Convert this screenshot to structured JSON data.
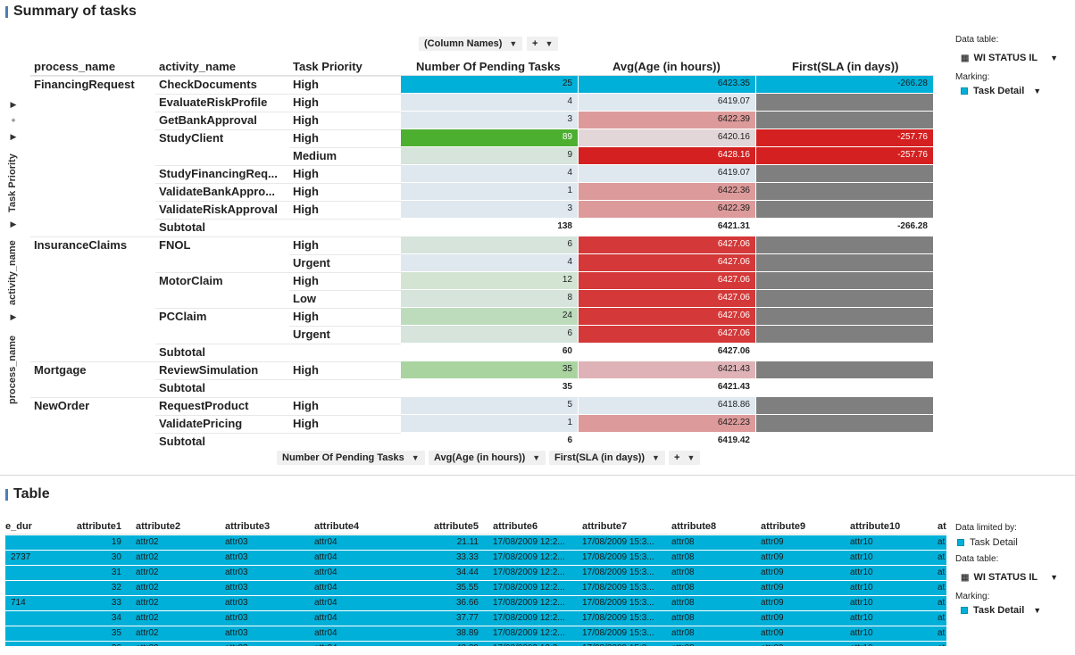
{
  "summary": {
    "title": "Summary of tasks",
    "column_names_label": "(Column Names)",
    "plus_label": "+",
    "vertical_axis": [
      "Task Priority",
      "activity_name",
      "process_name"
    ],
    "headers": [
      "process_name",
      "activity_name",
      "Task Priority",
      "Number Of Pending Tasks",
      "Avg(Age (in hours))",
      "First(SLA (in days))"
    ],
    "rows": [
      {
        "process": "FinancingRequest",
        "activity": "CheckDocuments",
        "priority": "High",
        "count": "25",
        "avg": "6423.35",
        "sla": "-266.28",
        "c1": "#00b0d8",
        "c2": "#00b0d8",
        "c3": "#00b0d8",
        "sub": false
      },
      {
        "process": "",
        "activity": "EvaluateRiskProfile",
        "priority": "High",
        "count": "4",
        "avg": "6419.07",
        "sla": "",
        "c1": "#dfe8ef",
        "c2": "#dfe8ef",
        "c3": "#7f7f7f",
        "sub": false
      },
      {
        "process": "",
        "activity": "GetBankApproval",
        "priority": "High",
        "count": "3",
        "avg": "6422.39",
        "sla": "",
        "c1": "#dfe8ef",
        "c2": "#dd9a9a",
        "c3": "#7f7f7f",
        "sub": false
      },
      {
        "process": "",
        "activity": "StudyClient",
        "priority": "High",
        "count": "89",
        "avg": "6420.16",
        "sla": "-257.76",
        "c1": "#4caf30",
        "c2": "#e2d6d8",
        "c3": "#d42020",
        "sub": false
      },
      {
        "process": "",
        "activity": "",
        "priority": "Medium",
        "count": "9",
        "avg": "6428.16",
        "sla": "-257.76",
        "c1": "#d6e4dc",
        "c2": "#d42020",
        "c3": "#d42020",
        "sub": false
      },
      {
        "process": "",
        "activity": "StudyFinancingReq...",
        "priority": "High",
        "count": "4",
        "avg": "6419.07",
        "sla": "",
        "c1": "#dfe8ef",
        "c2": "#dfe8ef",
        "c3": "#7f7f7f",
        "sub": false
      },
      {
        "process": "",
        "activity": "ValidateBankAppro...",
        "priority": "High",
        "count": "1",
        "avg": "6422.36",
        "sla": "",
        "c1": "#dfe8ef",
        "c2": "#dd9a9a",
        "c3": "#7f7f7f",
        "sub": false
      },
      {
        "process": "",
        "activity": "ValidateRiskApproval",
        "priority": "High",
        "count": "3",
        "avg": "6422.39",
        "sla": "",
        "c1": "#dfe8ef",
        "c2": "#dd9a9a",
        "c3": "#7f7f7f",
        "sub": false
      },
      {
        "process": "",
        "activity": "Subtotal",
        "priority": "",
        "count": "138",
        "avg": "6421.31",
        "sla": "-266.28",
        "c1": "#ffffff",
        "c2": "#ffffff",
        "c3": "#ffffff",
        "sub": true
      },
      {
        "process": "InsuranceClaims",
        "activity": "FNOL",
        "priority": "High",
        "count": "6",
        "avg": "6427.06",
        "sla": "",
        "c1": "#d6e4dc",
        "c2": "#d43838",
        "c3": "#7f7f7f",
        "sub": false
      },
      {
        "process": "",
        "activity": "",
        "priority": "Urgent",
        "count": "4",
        "avg": "6427.06",
        "sla": "",
        "c1": "#dfe8ef",
        "c2": "#d43838",
        "c3": "#7f7f7f",
        "sub": false
      },
      {
        "process": "",
        "activity": "MotorClaim",
        "priority": "High",
        "count": "12",
        "avg": "6427.06",
        "sla": "",
        "c1": "#d3e4d3",
        "c2": "#d43838",
        "c3": "#7f7f7f",
        "sub": false
      },
      {
        "process": "",
        "activity": "",
        "priority": "Low",
        "count": "8",
        "avg": "6427.06",
        "sla": "",
        "c1": "#d6e4dc",
        "c2": "#d43838",
        "c3": "#7f7f7f",
        "sub": false
      },
      {
        "process": "",
        "activity": "PCClaim",
        "priority": "High",
        "count": "24",
        "avg": "6427.06",
        "sla": "",
        "c1": "#bcdcbc",
        "c2": "#d43838",
        "c3": "#7f7f7f",
        "sub": false
      },
      {
        "process": "",
        "activity": "",
        "priority": "Urgent",
        "count": "6",
        "avg": "6427.06",
        "sla": "",
        "c1": "#d6e4dc",
        "c2": "#d43838",
        "c3": "#7f7f7f",
        "sub": false
      },
      {
        "process": "",
        "activity": "Subtotal",
        "priority": "",
        "count": "60",
        "avg": "6427.06",
        "sla": "",
        "c1": "#ffffff",
        "c2": "#ffffff",
        "c3": "#ffffff",
        "sub": true
      },
      {
        "process": "Mortgage",
        "activity": "ReviewSimulation",
        "priority": "High",
        "count": "35",
        "avg": "6421.43",
        "sla": "",
        "c1": "#a9d4a0",
        "c2": "#deb2b6",
        "c3": "#7f7f7f",
        "sub": false
      },
      {
        "process": "",
        "activity": "Subtotal",
        "priority": "",
        "count": "35",
        "avg": "6421.43",
        "sla": "",
        "c1": "#ffffff",
        "c2": "#ffffff",
        "c3": "#ffffff",
        "sub": true
      },
      {
        "process": "NewOrder",
        "activity": "RequestProduct",
        "priority": "High",
        "count": "5",
        "avg": "6418.86",
        "sla": "",
        "c1": "#dfe8ef",
        "c2": "#dfe8ef",
        "c3": "#7f7f7f",
        "sub": false
      },
      {
        "process": "",
        "activity": "ValidatePricing",
        "priority": "High",
        "count": "1",
        "avg": "6422.23",
        "sla": "",
        "c1": "#dfe8ef",
        "c2": "#dd9a9a",
        "c3": "#7f7f7f",
        "sub": false
      },
      {
        "process": "",
        "activity": "Subtotal",
        "priority": "",
        "count": "6",
        "avg": "6419.42",
        "sla": "",
        "c1": "#ffffff",
        "c2": "#ffffff",
        "c3": "#ffffff",
        "sub": true
      }
    ],
    "bottom_axis": [
      "Number Of Pending Tasks",
      "Avg(Age (in hours))",
      "First(SLA (in days))",
      "+"
    ],
    "sidebar": {
      "data_table_label": "Data table:",
      "data_table_value": "WI STATUS IL",
      "marking_label": "Marking:",
      "marking_value": "Task Detail"
    }
  },
  "table": {
    "title": "Table",
    "headers": [
      "e_dur",
      "attribute1",
      "attribute2",
      "attribute3",
      "attribute4",
      "attribute5",
      "attribute6",
      "attribute7",
      "attribute8",
      "attribute9",
      "attribute10",
      "at"
    ],
    "rows": [
      [
        "",
        "19",
        "attr02",
        "attr03",
        "attr04",
        "21.11",
        "17/08/2009 12:2...",
        "17/08/2009 15:3...",
        "attr08",
        "attr09",
        "attr10",
        "at"
      ],
      [
        "2737",
        "30",
        "attr02",
        "attr03",
        "attr04",
        "33.33",
        "17/08/2009 12:2...",
        "17/08/2009 15:3...",
        "attr08",
        "attr09",
        "attr10",
        "at"
      ],
      [
        "",
        "31",
        "attr02",
        "attr03",
        "attr04",
        "34.44",
        "17/08/2009 12:2...",
        "17/08/2009 15:3...",
        "attr08",
        "attr09",
        "attr10",
        "at"
      ],
      [
        "",
        "32",
        "attr02",
        "attr03",
        "attr04",
        "35.55",
        "17/08/2009 12:2...",
        "17/08/2009 15:3...",
        "attr08",
        "attr09",
        "attr10",
        "at"
      ],
      [
        "714",
        "33",
        "attr02",
        "attr03",
        "attr04",
        "36.66",
        "17/08/2009 12:2...",
        "17/08/2009 15:3...",
        "attr08",
        "attr09",
        "attr10",
        "at"
      ],
      [
        "",
        "34",
        "attr02",
        "attr03",
        "attr04",
        "37.77",
        "17/08/2009 12:2...",
        "17/08/2009 15:3...",
        "attr08",
        "attr09",
        "attr10",
        "at"
      ],
      [
        "",
        "35",
        "attr02",
        "attr03",
        "attr04",
        "38.89",
        "17/08/2009 12:2...",
        "17/08/2009 15:3...",
        "attr08",
        "attr09",
        "attr10",
        "at"
      ],
      [
        "",
        "36",
        "attr02",
        "attr03",
        "attr04",
        "40.00",
        "17/08/2009 12:2...",
        "17/08/2009 15:3...",
        "attr08",
        "attr09",
        "attr10",
        "at"
      ]
    ],
    "sidebar": {
      "limited_label": "Data limited by:",
      "limited_value": "Task Detail",
      "data_table_label": "Data table:",
      "data_table_value": "WI STATUS IL",
      "marking_label": "Marking:",
      "marking_value": "Task Detail"
    }
  },
  "colors": {
    "accent": "#00b0d8",
    "panel_bar": "#4a7fb5"
  }
}
